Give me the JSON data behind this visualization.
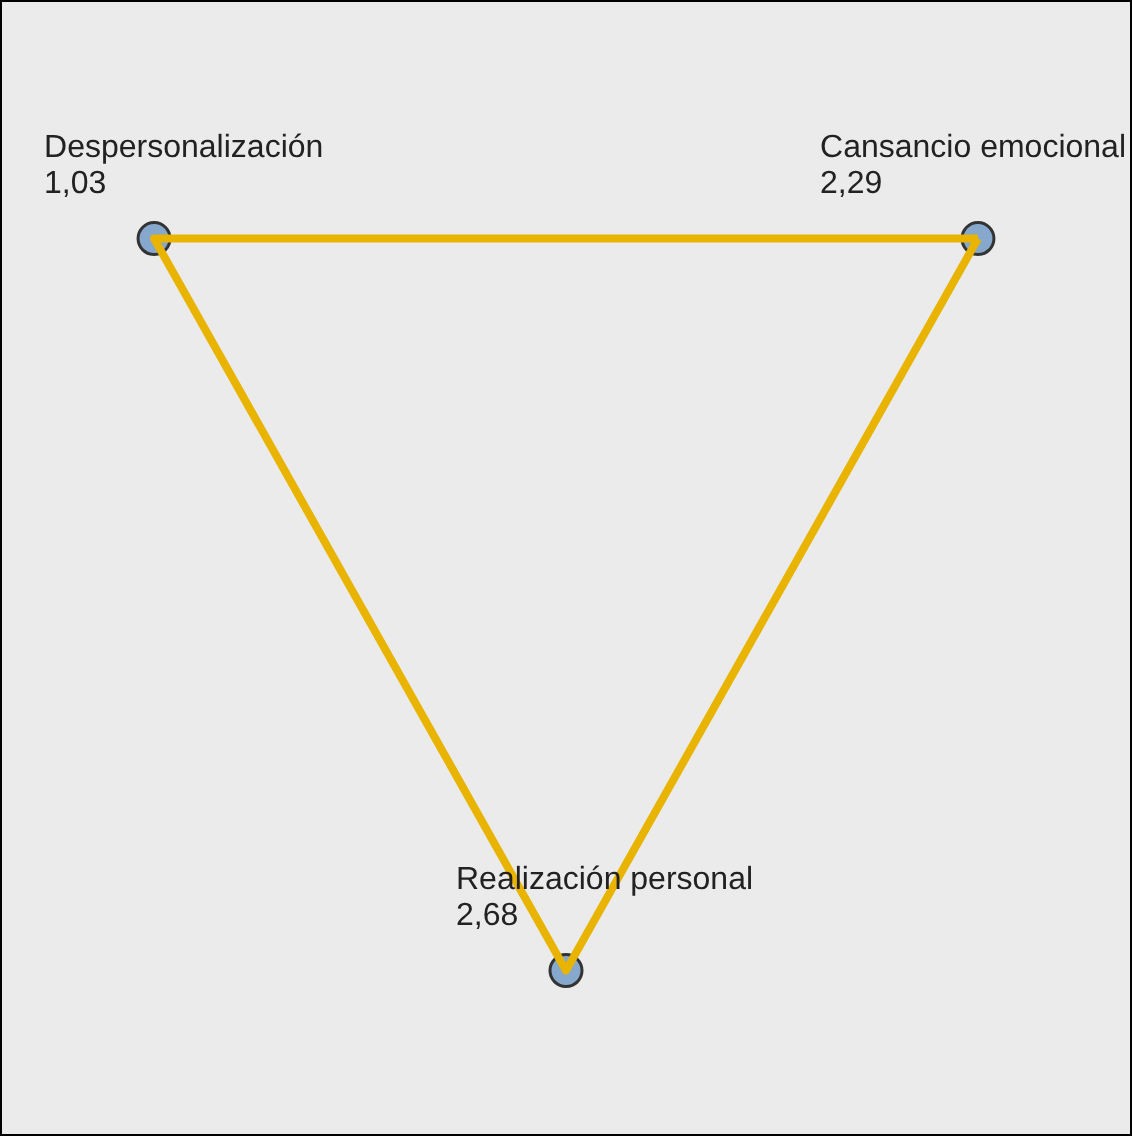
{
  "chart_data": {
    "type": "other",
    "categories": [
      "Cansancio emocional",
      "Despersonalización",
      "Realización personal"
    ],
    "values": [
      2.29,
      1.03,
      2.68
    ],
    "value_labels": [
      "2,29",
      "1,03",
      "2,68"
    ],
    "color": "#e8b400"
  }
}
